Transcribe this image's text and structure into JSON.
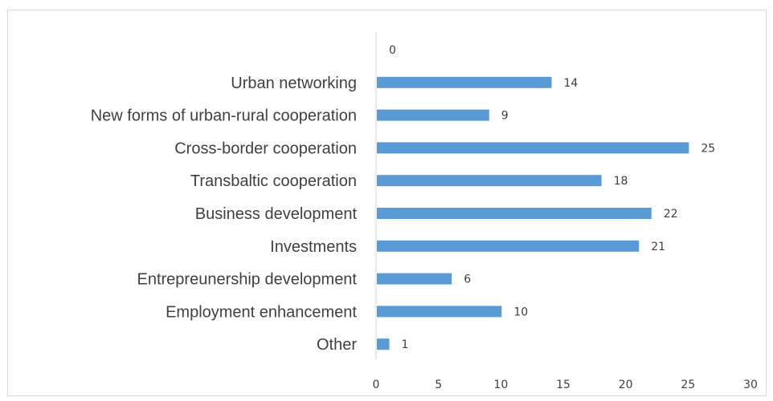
{
  "chart_data": {
    "type": "bar",
    "orientation": "horizontal",
    "title": "",
    "xlabel": "",
    "ylabel": "",
    "categories": [
      "",
      "Urban networking",
      "New forms of urban-rural cooperation",
      "Cross-border cooperation",
      "Transbaltic cooperation",
      "Business development",
      "Investments",
      "Entrepreunership development",
      "Employment enhancement",
      "Other"
    ],
    "values": [
      0,
      14,
      9,
      25,
      18,
      22,
      21,
      6,
      10,
      1
    ],
    "xlim": [
      0,
      30
    ],
    "xticks": [
      0,
      5,
      10,
      15,
      20,
      25,
      30
    ],
    "grid": false,
    "legend": "none",
    "bar_color": "#5b9bd5",
    "show_data_labels": true
  }
}
